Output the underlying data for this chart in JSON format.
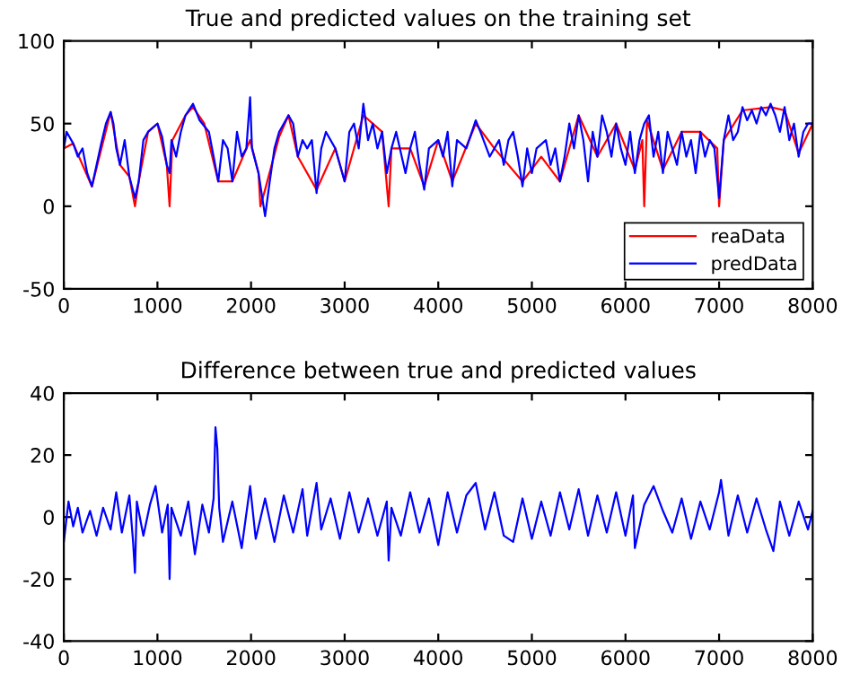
{
  "chart_data": [
    {
      "type": "line",
      "title": "True and predicted values on the training set",
      "xlim": [
        0,
        8000
      ],
      "ylim": [
        -50,
        100
      ],
      "xticks": [
        0,
        1000,
        2000,
        3000,
        4000,
        5000,
        6000,
        7000,
        8000
      ],
      "yticks": [
        -50,
        0,
        50,
        100
      ],
      "grid": false,
      "legend": "bottom right",
      "series": [
        {
          "name": "reaData",
          "color": "#ff0000",
          "x": [
            0,
            100,
            300,
            500,
            600,
            700,
            760,
            800,
            900,
            1000,
            1100,
            1130,
            1160,
            1300,
            1380,
            1500,
            1650,
            1800,
            1990,
            2080,
            2100,
            2150,
            2300,
            2400,
            2500,
            2700,
            2900,
            3000,
            3200,
            3400,
            3470,
            3500,
            3700,
            3850,
            4000,
            4150,
            4400,
            4600,
            4900,
            5100,
            5300,
            5500,
            5700,
            5900,
            6100,
            6180,
            6200,
            6230,
            6400,
            6600,
            6800,
            6980,
            7000,
            7050,
            7250,
            7550,
            7700,
            7850,
            8000
          ],
          "values": [
            35,
            38,
            12,
            57,
            25,
            18,
            0,
            15,
            45,
            50,
            25,
            0,
            40,
            55,
            60,
            50,
            15,
            15,
            40,
            20,
            0,
            10,
            42,
            55,
            30,
            10,
            35,
            15,
            55,
            45,
            0,
            35,
            35,
            12,
            40,
            15,
            50,
            35,
            15,
            30,
            15,
            55,
            30,
            50,
            22,
            40,
            0,
            52,
            22,
            45,
            45,
            35,
            0,
            40,
            58,
            60,
            58,
            32,
            50
          ]
        },
        {
          "name": "predData",
          "color": "#0000ff",
          "x": [
            0,
            30,
            100,
            150,
            200,
            250,
            300,
            350,
            400,
            450,
            500,
            530,
            560,
            600,
            650,
            700,
            760,
            800,
            850,
            900,
            1000,
            1050,
            1100,
            1130,
            1150,
            1200,
            1250,
            1300,
            1380,
            1450,
            1550,
            1600,
            1650,
            1700,
            1750,
            1800,
            1850,
            1900,
            1950,
            1990,
            2010,
            2080,
            2150,
            2200,
            2250,
            2300,
            2400,
            2450,
            2500,
            2550,
            2600,
            2650,
            2700,
            2750,
            2800,
            2900,
            2950,
            3000,
            3050,
            3100,
            3150,
            3200,
            3250,
            3300,
            3350,
            3400,
            3450,
            3500,
            3550,
            3650,
            3700,
            3750,
            3800,
            3850,
            3900,
            4000,
            4050,
            4100,
            4150,
            4200,
            4300,
            4400,
            4450,
            4550,
            4650,
            4700,
            4750,
            4800,
            4850,
            4900,
            4950,
            5000,
            5050,
            5150,
            5200,
            5250,
            5300,
            5350,
            5400,
            5450,
            5500,
            5550,
            5600,
            5650,
            5700,
            5750,
            5800,
            5850,
            5900,
            5950,
            6000,
            6050,
            6100,
            6150,
            6200,
            6250,
            6300,
            6350,
            6400,
            6450,
            6500,
            6550,
            6600,
            6650,
            6700,
            6750,
            6800,
            6850,
            6900,
            6950,
            7000,
            7050,
            7100,
            7150,
            7200,
            7250,
            7300,
            7350,
            7400,
            7450,
            7500,
            7550,
            7600,
            7650,
            7700,
            7750,
            7800,
            7850,
            7900,
            7950,
            8000
          ],
          "values": [
            35,
            45,
            38,
            30,
            35,
            20,
            12,
            25,
            38,
            50,
            57,
            50,
            35,
            25,
            40,
            18,
            5,
            15,
            40,
            45,
            50,
            42,
            25,
            20,
            40,
            30,
            45,
            55,
            62,
            52,
            45,
            30,
            15,
            40,
            35,
            15,
            45,
            30,
            35,
            66,
            35,
            20,
            -6,
            15,
            35,
            45,
            55,
            50,
            30,
            40,
            35,
            40,
            8,
            35,
            45,
            35,
            25,
            15,
            45,
            50,
            35,
            62,
            40,
            50,
            35,
            45,
            20,
            35,
            45,
            20,
            35,
            45,
            25,
            10,
            35,
            40,
            30,
            45,
            12,
            40,
            35,
            52,
            45,
            30,
            40,
            25,
            40,
            45,
            30,
            12,
            35,
            20,
            35,
            40,
            25,
            35,
            15,
            30,
            50,
            35,
            55,
            40,
            15,
            45,
            30,
            55,
            45,
            30,
            50,
            35,
            25,
            45,
            20,
            40,
            50,
            55,
            30,
            45,
            20,
            45,
            35,
            25,
            45,
            30,
            40,
            20,
            45,
            30,
            40,
            35,
            5,
            40,
            55,
            40,
            45,
            60,
            52,
            58,
            50,
            60,
            55,
            62,
            55,
            45,
            60,
            40,
            50,
            30,
            45,
            50,
            50
          ]
        }
      ]
    },
    {
      "type": "line",
      "title": "Difference between true and predicted values",
      "xlim": [
        0,
        8000
      ],
      "ylim": [
        -40,
        40
      ],
      "xticks": [
        0,
        1000,
        2000,
        3000,
        4000,
        5000,
        6000,
        7000,
        8000
      ],
      "yticks": [
        -40,
        -20,
        0,
        20,
        40
      ],
      "grid": false,
      "series": [
        {
          "color": "#0000ff",
          "x": [
            0,
            50,
            100,
            150,
            200,
            280,
            350,
            420,
            500,
            560,
            620,
            700,
            740,
            760,
            780,
            850,
            920,
            980,
            1050,
            1110,
            1130,
            1150,
            1250,
            1330,
            1400,
            1480,
            1550,
            1600,
            1620,
            1640,
            1660,
            1700,
            1800,
            1900,
            1990,
            2050,
            2150,
            2250,
            2350,
            2450,
            2550,
            2600,
            2700,
            2750,
            2850,
            2950,
            3050,
            3150,
            3250,
            3350,
            3450,
            3470,
            3500,
            3600,
            3700,
            3800,
            3900,
            4000,
            4100,
            4200,
            4300,
            4400,
            4500,
            4600,
            4700,
            4800,
            4900,
            5000,
            5100,
            5200,
            5300,
            5400,
            5500,
            5600,
            5700,
            5800,
            5900,
            6000,
            6080,
            6100,
            6200,
            6300,
            6400,
            6500,
            6600,
            6700,
            6800,
            6900,
            7000,
            7020,
            7100,
            7200,
            7300,
            7400,
            7500,
            7580,
            7650,
            7750,
            7850,
            7950,
            8000
          ],
          "values": [
            -8,
            5,
            -3,
            3,
            -5,
            2,
            -6,
            3,
            -4,
            8,
            -5,
            7,
            -8,
            -18,
            5,
            -6,
            4,
            10,
            -5,
            4,
            -20,
            3,
            -6,
            5,
            -12,
            4,
            -5,
            6,
            29,
            22,
            3,
            -8,
            5,
            -10,
            10,
            -7,
            6,
            -8,
            7,
            -5,
            9,
            -6,
            11,
            -4,
            6,
            -7,
            8,
            -5,
            6,
            -6,
            5,
            -14,
            3,
            -6,
            8,
            -5,
            6,
            -9,
            8,
            -5,
            7,
            11,
            -4,
            8,
            -6,
            -8,
            6,
            -7,
            5,
            -6,
            8,
            -4,
            9,
            -6,
            7,
            -5,
            8,
            -6,
            7,
            -10,
            4,
            10,
            2,
            -5,
            6,
            -7,
            5,
            -4,
            8,
            12,
            -6,
            7,
            -5,
            6,
            -4,
            -11,
            5,
            -6,
            5,
            -4,
            2
          ]
        }
      ]
    }
  ]
}
